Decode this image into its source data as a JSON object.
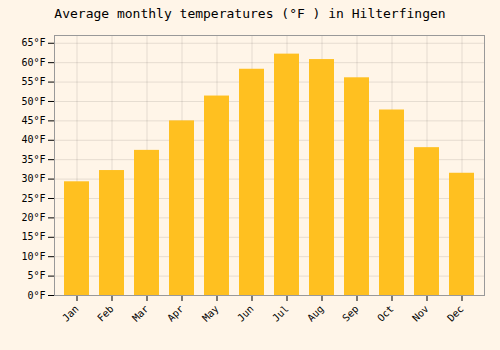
{
  "chart_data": {
    "type": "bar",
    "title": "Average monthly temperatures (°F ) in Hilterfingen",
    "categories": [
      "Jan",
      "Feb",
      "Mar",
      "Apr",
      "May",
      "Jun",
      "Jul",
      "Aug",
      "Sep",
      "Oct",
      "Nov",
      "Dec"
    ],
    "values": [
      29.3,
      32.2,
      37.4,
      45.0,
      51.4,
      58.3,
      62.2,
      60.8,
      56.1,
      47.8,
      38.1,
      31.5
    ],
    "color": "#FFC020",
    "ylim": [
      0,
      67
    ],
    "yticks": [
      {
        "value": 0,
        "label": "0°F"
      },
      {
        "value": 5,
        "label": "5°F"
      },
      {
        "value": 10,
        "label": "10°F"
      },
      {
        "value": 15,
        "label": "15°F"
      },
      {
        "value": 20,
        "label": "20°F"
      },
      {
        "value": 25,
        "label": "25°F"
      },
      {
        "value": 30,
        "label": "30°F"
      },
      {
        "value": 35,
        "label": "35°F"
      },
      {
        "value": 40,
        "label": "40°F"
      },
      {
        "value": 45,
        "label": "45°F"
      },
      {
        "value": 50,
        "label": "50°F"
      },
      {
        "value": 55,
        "label": "55°F"
      },
      {
        "value": 60,
        "label": "60°F"
      },
      {
        "value": 65,
        "label": "65°F"
      }
    ],
    "grid": true
  }
}
